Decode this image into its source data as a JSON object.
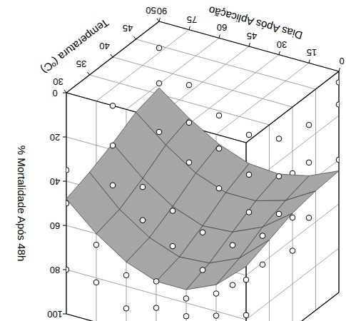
{
  "chart_data": {
    "type": "surface",
    "xlabel": "Temperatura (ºC)",
    "ylabel": "Dias Após Aplicação",
    "zlabel": "% Mortalidade Após 48h",
    "x": [
      30,
      35,
      40,
      45,
      50
    ],
    "y": [
      0,
      15,
      30,
      45,
      60,
      75,
      90
    ],
    "z": [
      [
        56,
        68,
        74,
        74,
        69,
        60,
        48
      ],
      [
        52,
        64,
        70,
        71,
        66,
        57,
        44
      ],
      [
        48,
        58,
        64,
        65,
        60,
        51,
        39
      ],
      [
        46,
        54,
        58,
        58,
        53,
        44,
        33
      ],
      [
        45,
        51,
        54,
        53,
        48,
        40,
        30
      ]
    ],
    "color": "#a6a6a6",
    "points": {
      "x": [
        30,
        30,
        30,
        30,
        30,
        30,
        30,
        30,
        30,
        30,
        30,
        30,
        30,
        30,
        30,
        30,
        30,
        30,
        30,
        30,
        30,
        40,
        40,
        40,
        40,
        40,
        40,
        40,
        40,
        40,
        40,
        40,
        40,
        40,
        40,
        40,
        40,
        40,
        40,
        40,
        40,
        40,
        50,
        50,
        50,
        50,
        50,
        50,
        50,
        50,
        50,
        50,
        50,
        50,
        50,
        50,
        50,
        50,
        50,
        50,
        50,
        50,
        50
      ],
      "y": [
        0,
        0,
        0,
        15,
        15,
        15,
        30,
        30,
        30,
        45,
        45,
        45,
        60,
        60,
        60,
        75,
        75,
        75,
        90,
        90,
        90,
        0,
        0,
        0,
        15,
        15,
        15,
        30,
        30,
        30,
        45,
        45,
        45,
        60,
        60,
        60,
        75,
        75,
        75,
        90,
        90,
        90,
        0,
        0,
        0,
        15,
        15,
        15,
        30,
        30,
        30,
        45,
        45,
        45,
        60,
        60,
        60,
        75,
        75,
        75,
        90,
        90,
        90
      ],
      "z": [
        40,
        62,
        78,
        55,
        72,
        82,
        65,
        78,
        86,
        60,
        74,
        86,
        58,
        75,
        90,
        45,
        65,
        82,
        35,
        50,
        80,
        30,
        50,
        65,
        45,
        62,
        75,
        52,
        70,
        88,
        55,
        68,
        85,
        48,
        62,
        78,
        35,
        55,
        70,
        22,
        40,
        58,
        5,
        15,
        40,
        28,
        45,
        70,
        38,
        55,
        72,
        40,
        58,
        75,
        35,
        50,
        68,
        25,
        42,
        60,
        12,
        28,
        50
      ],
      "marker": "circle"
    },
    "xlim": [
      30,
      50
    ],
    "ylim": [
      0,
      90
    ],
    "zlim": [
      0,
      100
    ],
    "xticks": [
      30,
      35,
      40,
      45,
      50
    ],
    "yticks": [
      0,
      15,
      30,
      45,
      60,
      75,
      90
    ],
    "zticks": [
      0,
      20,
      40,
      60,
      80,
      100
    ],
    "grid": true
  }
}
